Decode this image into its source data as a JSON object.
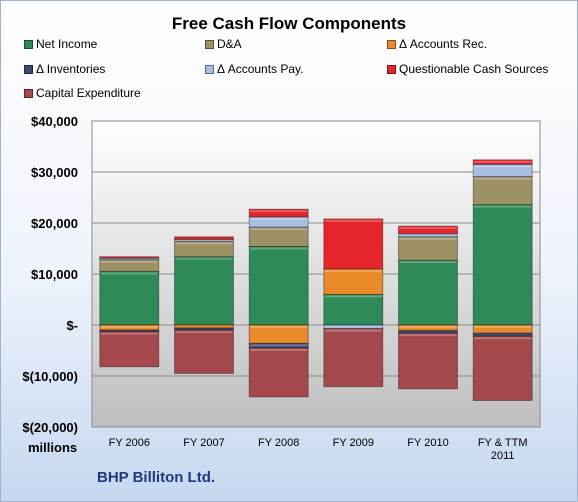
{
  "chart_data": {
    "type": "bar",
    "stacked": true,
    "title": "Free Cash Flow Components",
    "ylabel": "millions",
    "ylim": [
      -20000,
      40000
    ],
    "y_ticks": [
      {
        "value": 40000,
        "label": "$40,000"
      },
      {
        "value": 30000,
        "label": "$30,000"
      },
      {
        "value": 20000,
        "label": "$20,000"
      },
      {
        "value": 10000,
        "label": "$10,000"
      },
      {
        "value": 0,
        "label": "$-"
      },
      {
        "value": -10000,
        "label": "$(10,000)"
      },
      {
        "value": -20000,
        "label": "$(20,000)"
      }
    ],
    "categories": [
      "FY 2006",
      "FY 2007",
      "FY 2008",
      "FY 2009",
      "FY 2010",
      [
        "FY & TTM",
        "2011"
      ]
    ],
    "grid": true,
    "legend_position": "top",
    "series": [
      {
        "name": "Net Income",
        "color": "#2e8b57",
        "values": [
          10500,
          13400,
          15400,
          6000,
          12700,
          23600
        ]
      },
      {
        "name": "D&A",
        "color": "#9c9265",
        "values": [
          2300,
          3000,
          3800,
          0,
          4600,
          5500
        ]
      },
      {
        "name": "Δ Accounts Rec.",
        "color": "#e8892a",
        "values": [
          -1000,
          -600,
          -3600,
          5000,
          -1100,
          -1600
        ]
      },
      {
        "name": "Δ Inventories",
        "color": "#3c4a72",
        "values": [
          -300,
          -400,
          -900,
          0,
          -500,
          -600
        ]
      },
      {
        "name": "Δ Accounts Pay.",
        "color": "#a6bfe3",
        "values": [
          300,
          400,
          2000,
          -700,
          600,
          2400
        ]
      },
      {
        "name": "Questionable Cash Sources",
        "color": "#e4262a",
        "values": [
          300,
          500,
          1500,
          9800,
          1500,
          900
        ]
      },
      {
        "name": "Capital Expenditure",
        "color": "#a4484b",
        "values": [
          -6900,
          -8500,
          -9600,
          -11400,
          -10900,
          -12600
        ]
      }
    ]
  },
  "units_label": "millions",
  "company": "BHP Billiton Ltd."
}
